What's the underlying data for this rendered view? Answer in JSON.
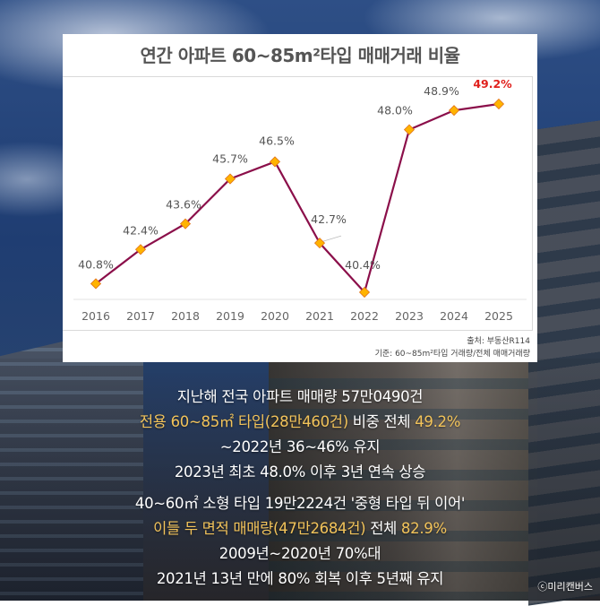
{
  "chart_data": {
    "type": "line",
    "title": "연간 아파트 60~85m²타입 매매거래 비율",
    "xlabel": "",
    "ylabel": "",
    "categories": [
      "2016",
      "2017",
      "2018",
      "2019",
      "2020",
      "2021",
      "2022",
      "2023",
      "2024",
      "2025"
    ],
    "series": [
      {
        "name": "60~85m²타입 매매거래 비율",
        "values": [
          40.8,
          42.4,
          43.6,
          45.7,
          46.5,
          42.7,
          40.4,
          48.0,
          48.9,
          49.2
        ],
        "labels": [
          "40.8%",
          "42.4%",
          "43.6%",
          "45.7%",
          "46.5%",
          "42.7%",
          "40.4%",
          "48.0%",
          "48.9%",
          "49.2%"
        ],
        "line_color": "#8b0f4a",
        "marker_color": "#ffb300",
        "highlight_label_color": "#e0201c"
      }
    ],
    "ylim": [
      40.4,
      49.2
    ],
    "grid": false,
    "legend": "none",
    "source": "출처: 부동산R114",
    "note": "기준: 60~85m²타입 거래량/전체 매매거래량"
  },
  "captions": {
    "block1": [
      {
        "parts": [
          {
            "text": "지난해 전국 아파트 매매량 57만0490건",
            "hl": false
          }
        ]
      },
      {
        "parts": [
          {
            "text": "전용 60~85㎡ 타입(28만460건)",
            "hl": true
          },
          {
            "text": " 비중 전체 ",
            "hl": false
          },
          {
            "text": "49.2%",
            "hl": true
          }
        ]
      },
      {
        "parts": [
          {
            "text": "~2022년 36~46% 유지",
            "hl": false
          }
        ]
      },
      {
        "parts": [
          {
            "text": "2023년 최초 48.0% 이후 3년 연속 상승",
            "hl": false
          }
        ]
      }
    ],
    "block2": [
      {
        "parts": [
          {
            "text": "40~60㎡ 소형 타입 19만2224건 '중형 타입 뒤 이어'",
            "hl": false
          }
        ]
      },
      {
        "parts": [
          {
            "text": "이들 두 면적 매매량(47만2684건)",
            "hl": true
          },
          {
            "text": " 전체 ",
            "hl": false
          },
          {
            "text": "82.9%",
            "hl": true
          }
        ]
      },
      {
        "parts": [
          {
            "text": "2009년~2020년 70%대",
            "hl": false
          }
        ]
      },
      {
        "parts": [
          {
            "text": "2021년 13년 만에 80% 회복 이후 5년째 유지",
            "hl": false
          }
        ]
      }
    ],
    "highlight_color": "#f2c35a"
  },
  "copyright": "ⓒ미리캔버스"
}
